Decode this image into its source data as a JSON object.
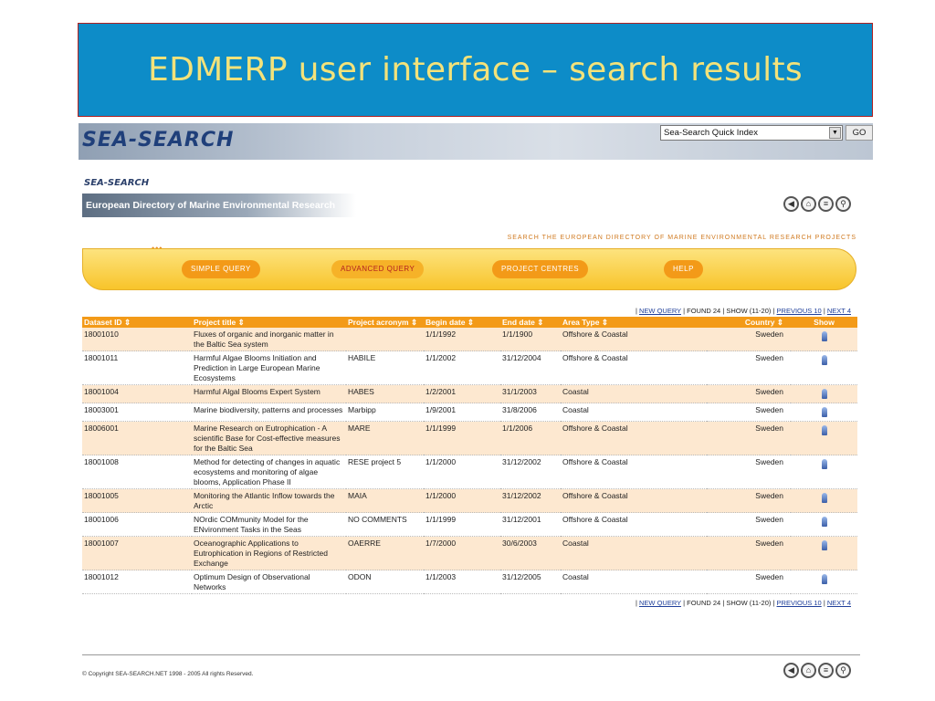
{
  "slide": {
    "title": "EDMERP user interface – search results"
  },
  "header": {
    "logo": "SEA-SEARCH",
    "quick_index": "Sea-Search Quick Index",
    "quick_arrow": "▼",
    "go_label": "GO"
  },
  "subheader": {
    "small_logo": "SEA-SEARCH",
    "directory_title": "European Directory of Marine Environmental Research Projects",
    "tagline": "Search the European Directory of Marine Environmental Research Projects",
    "icons": [
      "back-icon",
      "home-icon",
      "contents-icon",
      "search-icon"
    ]
  },
  "menu": {
    "dots": "•••",
    "items": [
      {
        "label": "Simple query"
      },
      {
        "label": "Advanced query"
      },
      {
        "label": "Project centres"
      },
      {
        "label": "Help"
      }
    ]
  },
  "pager": {
    "new_query": "NEW QUERY",
    "found": "FOUND 24",
    "show": "SHOW  (11-20)",
    "previous": "PREVIOUS 10",
    "next": "NEXT 4",
    "sep": "|"
  },
  "table": {
    "columns": [
      "Dataset ID",
      "Project title",
      "Project acronym",
      "Begin date",
      "End date",
      "Area Type",
      "Country",
      "Show"
    ],
    "sort_glyph": "⇕",
    "rows": [
      {
        "id": "18001010",
        "title": "Fluxes of organic and inorganic matter in the Baltic Sea system",
        "acronym": "",
        "begin": "1/1/1992",
        "end": "1/1/1900",
        "area": "Offshore & Coastal",
        "country": "Sweden"
      },
      {
        "id": "18001011",
        "title": "Harmful Algae Blooms Initiation and Prediction in Large European Marine Ecosystems",
        "acronym": "HABILE",
        "begin": "1/1/2002",
        "end": "31/12/2004",
        "area": "Offshore & Coastal",
        "country": "Sweden"
      },
      {
        "id": "18001004",
        "title": "Harmful Algal Blooms Expert System",
        "acronym": "HABES",
        "begin": "1/2/2001",
        "end": "31/1/2003",
        "area": "Coastal",
        "country": "Sweden"
      },
      {
        "id": "18003001",
        "title": "Marine biodiversity, patterns and processes",
        "acronym": "Marbipp",
        "begin": "1/9/2001",
        "end": "31/8/2006",
        "area": "Coastal",
        "country": "Sweden"
      },
      {
        "id": "18006001",
        "title": "Marine Research on Eutrophication - A scientific Base for Cost-effective measures for the Baltic Sea",
        "acronym": "MARE",
        "begin": "1/1/1999",
        "end": "1/1/2006",
        "area": "Offshore & Coastal",
        "country": "Sweden"
      },
      {
        "id": "18001008",
        "title": "Method for detecting of changes in aquatic ecosystems and monitoring of algae blooms, Application Phase II",
        "acronym": "RESE project 5",
        "begin": "1/1/2000",
        "end": "31/12/2002",
        "area": "Offshore & Coastal",
        "country": "Sweden"
      },
      {
        "id": "18001005",
        "title": "Monitoring the Atlantic Inflow towards the Arctic",
        "acronym": "MAIA",
        "begin": "1/1/2000",
        "end": "31/12/2002",
        "area": "Offshore & Coastal",
        "country": "Sweden"
      },
      {
        "id": "18001006",
        "title": "NOrdic COMmunity Model for the ENvironment Tasks in the Seas",
        "acronym": "NO COMMENTS",
        "begin": "1/1/1999",
        "end": "31/12/2001",
        "area": "Offshore & Coastal",
        "country": "Sweden"
      },
      {
        "id": "18001007",
        "title": "Oceanographic Applications to Eutrophication in Regions of Restricted Exchange",
        "acronym": "OAERRE",
        "begin": "1/7/2000",
        "end": "30/6/2003",
        "area": "Coastal",
        "country": "Sweden"
      },
      {
        "id": "18001012",
        "title": "Optimum Design of Observational Networks",
        "acronym": "ODON",
        "begin": "1/1/2003",
        "end": "31/12/2005",
        "area": "Coastal",
        "country": "Sweden"
      }
    ]
  },
  "footer": {
    "copyright": "© Copyright SEA-SEARCH.NET 1998 - 2005 All rights Reserved."
  }
}
